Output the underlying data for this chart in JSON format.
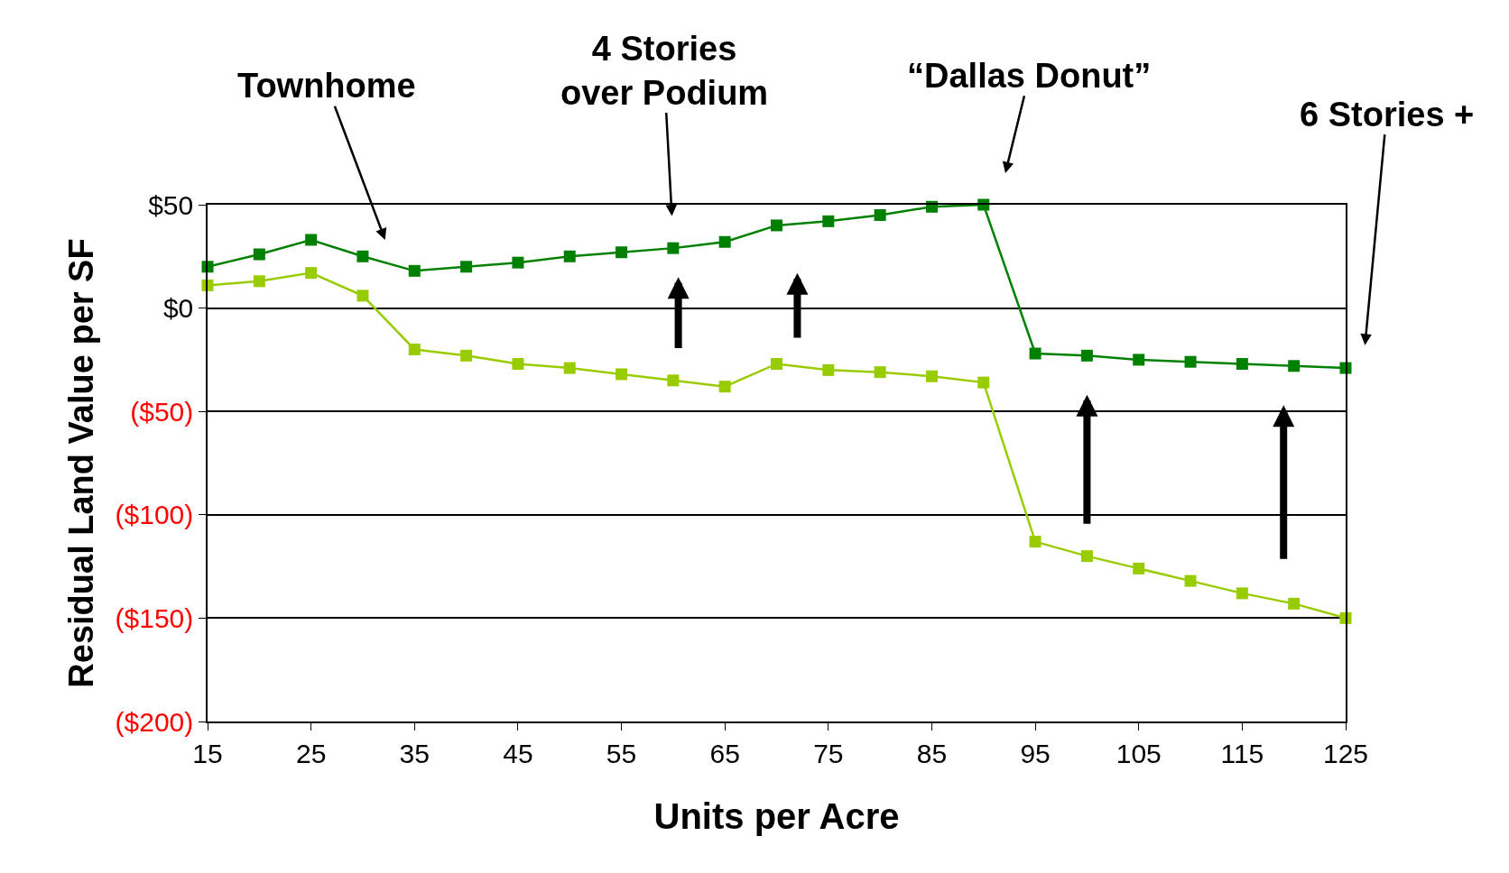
{
  "chart_data": {
    "type": "line",
    "xlabel": "Units per Acre",
    "ylabel": "Residual Land Value per SF",
    "x": [
      15,
      20,
      25,
      30,
      35,
      40,
      45,
      50,
      55,
      60,
      65,
      70,
      75,
      80,
      85,
      90,
      95,
      100,
      105,
      110,
      115,
      120,
      125
    ],
    "series": [
      {
        "color": "#008000",
        "values": [
          20,
          26,
          33,
          25,
          18,
          20,
          22,
          25,
          27,
          29,
          32,
          40,
          42,
          45,
          49,
          50,
          -22,
          -23,
          -25,
          -26,
          -27,
          -28,
          -29
        ]
      },
      {
        "color": "#99cc00",
        "values": [
          11,
          13,
          17,
          6,
          -20,
          -23,
          -27,
          -29,
          -32,
          -35,
          -38,
          -27,
          -30,
          -31,
          -33,
          -36,
          -113,
          -120,
          -126,
          -132,
          -138,
          -143,
          -150
        ]
      }
    ],
    "xlim": [
      15,
      125
    ],
    "xticks": [
      15,
      25,
      35,
      45,
      55,
      65,
      75,
      85,
      95,
      105,
      115,
      125
    ],
    "ylim": [
      -200,
      50
    ],
    "yticks": [
      {
        "value": 50,
        "label": "$50"
      },
      {
        "value": 0,
        "label": "$0"
      },
      {
        "value": -50,
        "label": "($50)"
      },
      {
        "value": -100,
        "label": "($100)"
      },
      {
        "value": -150,
        "label": "($150)"
      },
      {
        "value": -200,
        "label": "($200)"
      }
    ],
    "annotations": [
      "Townhome",
      "4 Stories\nover Podium",
      "“Dallas Donut”",
      "6 Stories +"
    ],
    "grid": "y",
    "marker": "square",
    "line_style": "solid",
    "legend": false
  }
}
